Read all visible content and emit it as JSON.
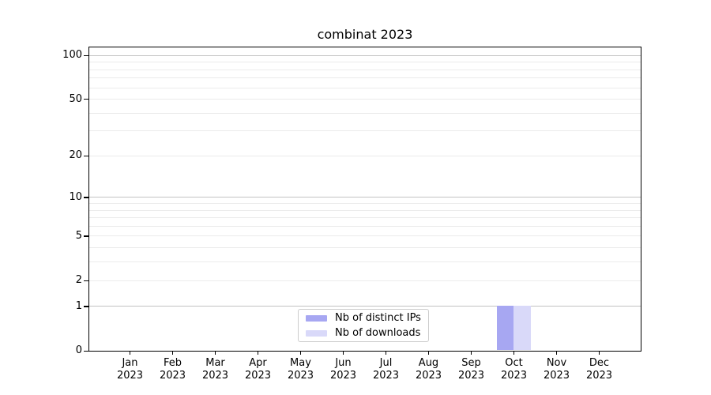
{
  "figure": {
    "title": "combinat 2023"
  },
  "chart_data": {
    "type": "bar",
    "title": "combinat 2023",
    "categories": [
      "Jan 2023",
      "Feb 2023",
      "Mar 2023",
      "Apr 2023",
      "May 2023",
      "Jun 2023",
      "Jul 2023",
      "Aug 2023",
      "Sep 2023",
      "Oct 2023",
      "Nov 2023",
      "Dec 2023"
    ],
    "month_labels": [
      "Jan",
      "Feb",
      "Mar",
      "Apr",
      "May",
      "Jun",
      "Jul",
      "Aug",
      "Sep",
      "Oct",
      "Nov",
      "Dec"
    ],
    "year_label": "2023",
    "series": [
      {
        "name": "Nb of distinct IPs",
        "color": "#a7a7f2",
        "values": [
          0,
          0,
          0,
          0,
          0,
          0,
          0,
          0,
          0,
          1,
          0,
          0
        ]
      },
      {
        "name": "Nb of downloads",
        "color": "#d9d9f9",
        "values": [
          0,
          0,
          0,
          0,
          0,
          0,
          0,
          0,
          0,
          1,
          0,
          0
        ]
      }
    ],
    "xlabel": "",
    "ylabel": "",
    "y_scale": "log1p",
    "ylim": [
      0,
      115
    ],
    "y_ticks": [
      0,
      1,
      2,
      5,
      10,
      20,
      50,
      100
    ],
    "y_tick_labels": [
      "0",
      "1",
      "2",
      "5",
      "10",
      "20",
      "50",
      "100"
    ],
    "y_major_gridlines": [
      1,
      10,
      100
    ],
    "y_minor_gridlines": [
      2,
      3,
      4,
      5,
      6,
      7,
      8,
      9,
      20,
      30,
      40,
      50,
      60,
      70,
      80,
      90
    ],
    "grid": true,
    "legend_position": "lower center"
  },
  "colors": {
    "background": "#ffffff",
    "axis": "#000000",
    "text": "#000000",
    "grid_minor": "#ebebeb",
    "grid_major": "#c3c3c3",
    "legend_border": "#cccccc",
    "bar_distinct_ips": "#a7a7f2",
    "bar_downloads": "#d9d9f9"
  }
}
